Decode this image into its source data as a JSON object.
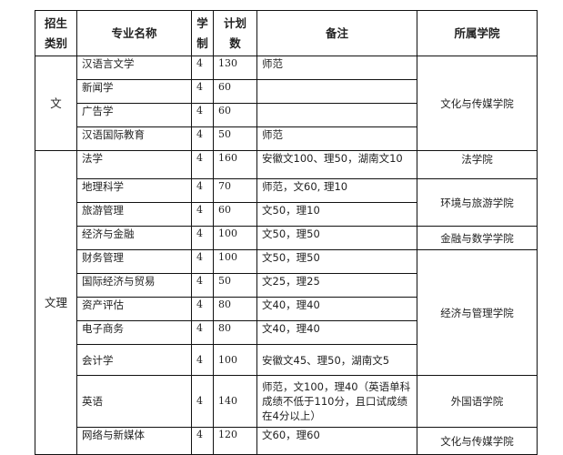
{
  "headers": {
    "category": "招生类别",
    "major": "专业名称",
    "years": "学制",
    "plan": "计划数",
    "notes": "备注",
    "college": "所属学院"
  },
  "rows": [
    {
      "category": "文",
      "major": "汉语言文学",
      "years": "4",
      "plan": "130",
      "notes": "师范",
      "college": "文化与传媒学院"
    },
    {
      "major": "新闻学",
      "years": "4",
      "plan": "60",
      "notes": ""
    },
    {
      "major": "广告学",
      "years": "4",
      "plan": "60",
      "notes": ""
    },
    {
      "major": "汉语国际教育",
      "years": "4",
      "plan": "50",
      "notes": "师范"
    },
    {
      "category": "文理",
      "major": "法学",
      "years": "4",
      "plan": "160",
      "notes": "安徽文100、理50，湖南文10",
      "college": "法学院"
    },
    {
      "major": "地理科学",
      "years": "4",
      "plan": "70",
      "notes": "师范，文60, 理10",
      "college": "环境与旅游学院"
    },
    {
      "major": "旅游管理",
      "years": "4",
      "plan": "60",
      "notes": "文50，理10"
    },
    {
      "major": "经济与金融",
      "years": "4",
      "plan": "100",
      "notes": "文50，理50",
      "college": "金融与数学学院"
    },
    {
      "major": "财务管理",
      "years": "4",
      "plan": "100",
      "notes": "文50，理50",
      "college": "经济与管理学院"
    },
    {
      "major": "国际经济与贸易",
      "years": "4",
      "plan": "50",
      "notes": "文25，理25"
    },
    {
      "major": "资产评估",
      "years": "4",
      "plan": "80",
      "notes": "文40，理40"
    },
    {
      "major": "电子商务",
      "years": "4",
      "plan": "80",
      "notes": "文40，理40"
    },
    {
      "major": "会计学",
      "years": "4",
      "plan": "100",
      "notes": "安徽文45、理50，湖南文5"
    },
    {
      "major": "英语",
      "years": "4",
      "plan": "140",
      "notes": "师范，文100，理40（英语单科成绩不低于110分，且口试成绩在4分以上）",
      "college": "外国语学院"
    },
    {
      "major": "网络与新媒体",
      "years": "4",
      "plan": "120",
      "notes": "文60，理60",
      "college": "文化与传媒学院"
    }
  ]
}
